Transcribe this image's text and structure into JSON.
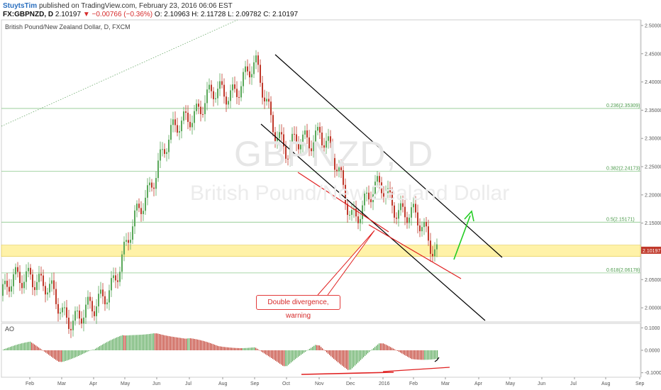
{
  "header": {
    "author": "StuytsTim",
    "published": "published on TradingView.com, February 23, 2016 06:06 EST",
    "symbol": "FX:GBPNZD, D",
    "last": "2.10197",
    "change_arrow": "▼",
    "change": "−0.00766 (−0.36%)",
    "ohlc": "O: 2.10963  H: 2.11728  L: 2.09782  C: 2.10197"
  },
  "pane_title": "British Pound/New Zealand Dollar, D, FXCM",
  "watermark": {
    "symbol": "GBPNZD, D",
    "name": "British Pound/New Zealand Dollar"
  },
  "indicator_title": "AO",
  "annotation": "Double divergence, warning",
  "colors": {
    "up": "#5aa85a",
    "down": "#c0392b",
    "fib": "#8cc98c",
    "zone": "#fff2a8",
    "trend": "#000000",
    "divergence": "#e02020",
    "arrow": "#22cc22"
  },
  "chart_data": {
    "type": "candlestick",
    "x_ticks": [
      "Feb",
      "Mar",
      "Apr",
      "May",
      "Jun",
      "Jul",
      "Aug",
      "Sep",
      "Oct",
      "Nov",
      "Dec",
      "2016",
      "Feb",
      "Mar",
      "Apr",
      "May",
      "Jun",
      "Jul",
      "Aug",
      "Sep"
    ],
    "y_ticks": [
      "2.50000",
      "2.45000",
      "2.40000",
      "2.35000",
      "2.30000",
      "2.25000",
      "2.20000",
      "2.15000",
      "2.05000",
      "2.00000"
    ],
    "ylim": [
      1.975,
      2.51
    ],
    "last_price_label": "2.10197",
    "last_price": 2.10197,
    "fib_levels": [
      {
        "label": "0.236(2.35309)",
        "value": 2.35309
      },
      {
        "label": "0.382(2.24173)",
        "value": 2.24173
      },
      {
        "label": "0.5(2.15171)",
        "value": 2.15171
      },
      {
        "label": "0.618(2.06178)",
        "value": 2.06178
      }
    ],
    "support_zone": [
      2.091,
      2.111
    ],
    "price_series_monthly": [
      {
        "month": "Jan 2015",
        "close": 2.02
      },
      {
        "month": "Feb 2015",
        "close": 2.07
      },
      {
        "month": "Mar 2015",
        "close": 1.99
      },
      {
        "month": "Apr 2015",
        "close": 1.99
      },
      {
        "month": "May 2015",
        "close": 2.1
      },
      {
        "month": "Jun 2015",
        "close": 2.26
      },
      {
        "month": "Jul 2015",
        "close": 2.35
      },
      {
        "month": "Aug 2015",
        "close": 2.38
      },
      {
        "month": "Sep 2015",
        "close": 2.42
      },
      {
        "month": "Oct 2015",
        "close": 2.27
      },
      {
        "month": "Nov 2015",
        "close": 2.32
      },
      {
        "month": "Dec 2015",
        "close": 2.17
      },
      {
        "month": "Jan 2016",
        "close": 2.21
      },
      {
        "month": "Feb 2016",
        "close": 2.102
      }
    ],
    "ao": {
      "y_ticks": [
        "0.1000",
        "0.0000",
        "-0.1000"
      ],
      "ylim": [
        -0.12,
        0.12
      ]
    }
  }
}
